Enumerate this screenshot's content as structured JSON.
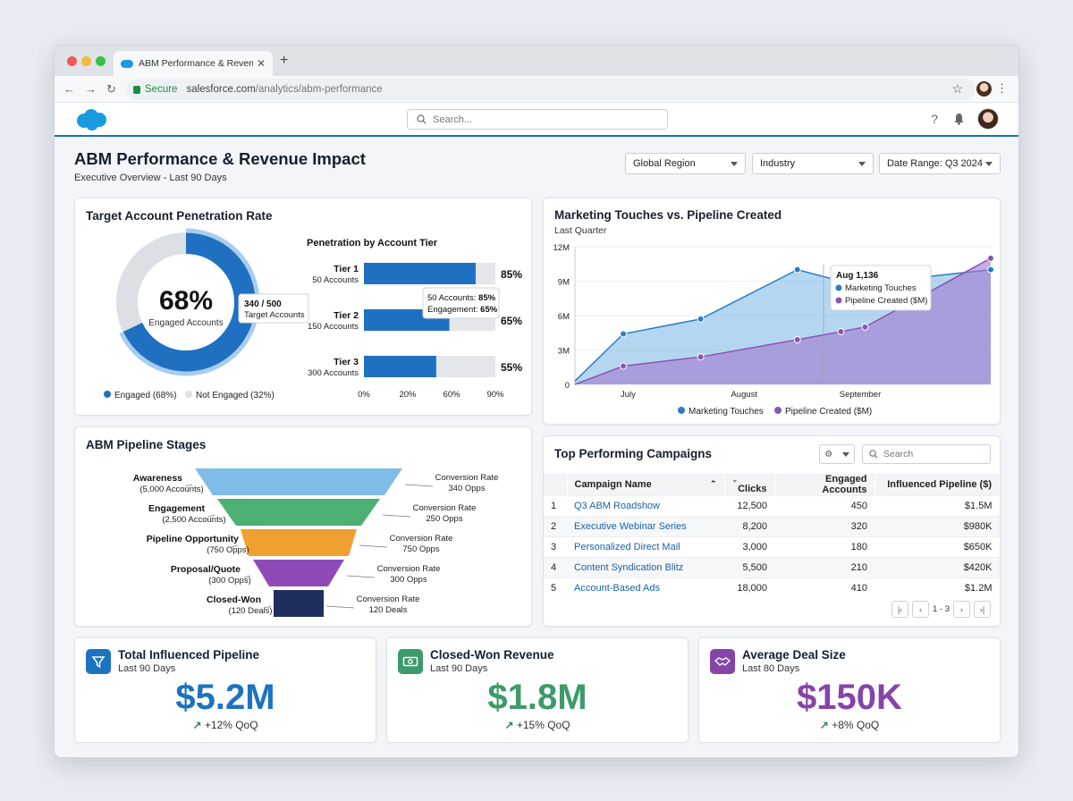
{
  "browser": {
    "tab_title": "ABM Performance & Revenue Im…",
    "secure_label": "Secure",
    "url_domain": "salesforce.com",
    "url_path": "/analytics/abm-performance"
  },
  "app": {
    "search_placeholder": "Search..."
  },
  "page": {
    "title": "ABM Performance & Revenue Impact",
    "subtitle": "Executive Overview - Last 90 Days",
    "filters": [
      "Global Region",
      "Industry",
      "Date Range: Q3 2024"
    ]
  },
  "penetration": {
    "title": "Target Account Penetration Rate",
    "percent_label": "68%",
    "percent": 68,
    "center_caption": "Engaged Accounts",
    "tooltip_value": "340 / 500",
    "tooltip_caption": "Target Accounts",
    "legend_engaged": "Engaged (68%)",
    "legend_not_engaged": "Not Engaged (32%)",
    "tier_title": "Penetration by Account Tier",
    "tiers": [
      {
        "name": "Tier 1",
        "accounts": "50 Accounts",
        "value": 85,
        "label": "85%"
      },
      {
        "name": "Tier 2",
        "accounts": "150 Accounts",
        "value": 65,
        "label": "65%"
      },
      {
        "name": "Tier 3",
        "accounts": "300 Accounts",
        "value": 55,
        "label": "55%"
      }
    ],
    "tier_ticks": [
      "0%",
      "20%",
      "60%",
      "90%"
    ],
    "tier_tooltip_line1": "50 Accounts: ",
    "tier_tooltip_line1_val": "85%",
    "tier_tooltip_line2": "Engagement: ",
    "tier_tooltip_line2_val": "65%"
  },
  "chart_data": {
    "type": "area",
    "title": "Marketing Touches vs. Pipeline Created",
    "subtitle": "Last Quarter",
    "x": [
      0,
      1,
      2,
      3,
      3.5,
      4,
      5
    ],
    "categories": [
      "July",
      "August",
      "September"
    ],
    "y_ticks": [
      "12M",
      "9M",
      "6M",
      "3M",
      "0"
    ],
    "ylim": [
      0,
      12
    ],
    "series": [
      {
        "name": "Marketing Touches",
        "color": "#2a7fc4",
        "points": [
          [
            0,
            0.3
          ],
          [
            0.5,
            4.4
          ],
          [
            1.3,
            5.7
          ],
          [
            2.3,
            10.0
          ],
          [
            2.75,
            9.0
          ],
          [
            3.0,
            8.8
          ],
          [
            4.3,
            10.0
          ]
        ]
      },
      {
        "name": "Pipeline Created ($M)",
        "color": "#8a55b5",
        "points": [
          [
            0,
            0
          ],
          [
            0.5,
            1.6
          ],
          [
            1.3,
            2.4
          ],
          [
            2.3,
            3.9
          ],
          [
            2.75,
            4.6
          ],
          [
            3.0,
            5.0
          ],
          [
            4.3,
            11.0
          ]
        ]
      }
    ],
    "tooltip": {
      "title": "Aug 1,136",
      "lines": [
        "Marketing Touches",
        "Pipeline Created ($M)"
      ]
    },
    "legend": [
      "Marketing Touches",
      "Pipeline Created ($M)"
    ]
  },
  "funnel": {
    "title": "ABM Pipeline Stages",
    "stages": [
      {
        "name": "Awareness",
        "count": "(5,000 Accounts)",
        "rate_label": "Conversion Rate",
        "rate": "340 Opps",
        "color": "#7fbde8"
      },
      {
        "name": "Engagement",
        "count": "(2,500 Accounts)",
        "rate_label": "Conversion Rate",
        "rate": "250 Opps",
        "color": "#4caf73"
      },
      {
        "name": "Pipeline Opportunity",
        "count": "(750 Opps)",
        "rate_label": "Conversion Rate",
        "rate": "750 Opps",
        "color": "#f0a030"
      },
      {
        "name": "Proposal/Quote",
        "count": "(300 Opps)",
        "rate_label": "Conversion Rate",
        "rate": "300 Opps",
        "color": "#8e4bb8"
      },
      {
        "name": "Closed-Won",
        "count": "(120 Deals)",
        "rate_label": "Conversion Rate",
        "rate": "120 Deals",
        "color": "#1e2f5e"
      }
    ]
  },
  "campaigns": {
    "title": "Top Performing Campaigns",
    "search_placeholder": "Search",
    "headers": [
      "Campaign Name",
      "Clicks",
      "Engaged Accounts",
      "Influenced Pipeline ($)"
    ],
    "rows": [
      [
        "1",
        "Q3 ABM Roadshow",
        "12,500",
        "450",
        "$1.5M"
      ],
      [
        "2",
        "Executive Webinar Series",
        "8,200",
        "320",
        "$980K"
      ],
      [
        "3",
        "Personalized Direct Mail",
        "3,000",
        "180",
        "$650K"
      ],
      [
        "4",
        "Content Syndication Blitz",
        "5,500",
        "210",
        "$420K"
      ],
      [
        "5",
        "Account-Based Ads",
        "18,000",
        "410",
        "$1.2M"
      ]
    ],
    "pagination": "1 - 3"
  },
  "kpis": [
    {
      "title": "Total Influenced Pipeline",
      "sub": "Last 90 Days",
      "value": "$5.2M",
      "delta": "+12% QoQ",
      "color": "#1c73bf",
      "icon": "funnel-icon"
    },
    {
      "title": "Closed-Won Revenue",
      "sub": "Last 90 Days",
      "value": "$1.8M",
      "delta": "+15% QoQ",
      "color": "#3d9a6a",
      "icon": "cash-icon"
    },
    {
      "title": "Average Deal Size",
      "sub": "Last 80 Days",
      "value": "$150K",
      "delta": "+8% QoQ",
      "color": "#8644a8",
      "icon": "handshake-icon"
    }
  ]
}
